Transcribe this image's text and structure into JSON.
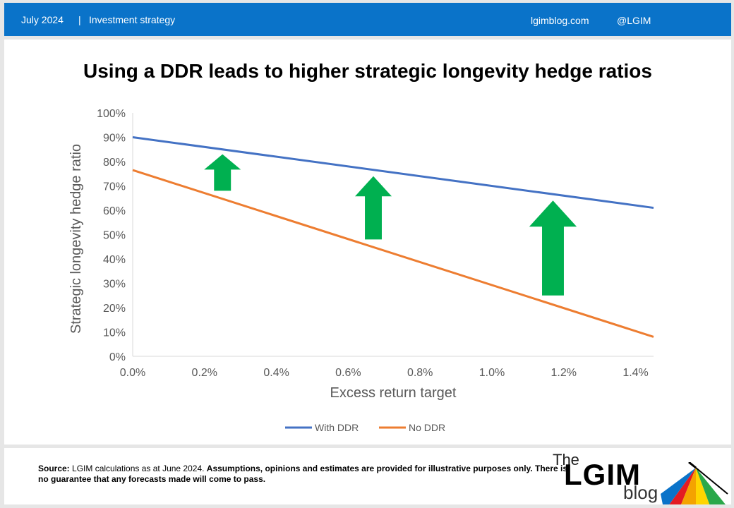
{
  "header": {
    "date": "July 2024",
    "separator": "|",
    "section": "Investment strategy",
    "site": "lgimblog.com",
    "handle": "@LGIM"
  },
  "colors": {
    "header_bg": "#0a73c9",
    "with_ddr": "#4472c4",
    "no_ddr": "#ed7d31",
    "arrow": "#00b050"
  },
  "chart_data": {
    "type": "line",
    "title": "Using a DDR leads to higher strategic longevity hedge ratios",
    "xlabel": "Excess return target",
    "ylabel": "Strategic longevity hedge ratio",
    "x_ticks": [
      "0.0%",
      "0.2%",
      "0.4%",
      "0.6%",
      "0.8%",
      "1.0%",
      "1.2%",
      "1.4%"
    ],
    "y_ticks": [
      "0%",
      "10%",
      "20%",
      "30%",
      "40%",
      "50%",
      "60%",
      "70%",
      "80%",
      "90%",
      "100%"
    ],
    "xlim": [
      0,
      1.45
    ],
    "ylim": [
      0,
      100
    ],
    "grid": false,
    "legend": "bottom-center",
    "series": [
      {
        "name": "With DDR",
        "color": "#4472c4",
        "x": [
          0,
          1.45
        ],
        "y": [
          90,
          61
        ]
      },
      {
        "name": "No DDR",
        "color": "#ed7d31",
        "x": [
          0,
          1.45
        ],
        "y": [
          76.5,
          8
        ]
      }
    ],
    "annotations": [
      {
        "type": "up-arrow",
        "x": 0.25,
        "from": 68,
        "to": 83
      },
      {
        "type": "up-arrow",
        "x": 0.67,
        "from": 48,
        "to": 74
      },
      {
        "type": "up-arrow",
        "x": 1.17,
        "from": 25,
        "to": 64
      }
    ]
  },
  "footer": {
    "source_label": "Source:",
    "source_text": " LGIM calculations as at June 2024. ",
    "disclaimer": "Assumptions,  opinions and estimates are provided for illustrative purposes only. There is no guarantee that any forecasts  made will come to pass.",
    "logo_the": "The",
    "logo_main": "LGIM",
    "logo_blog": "blog"
  }
}
